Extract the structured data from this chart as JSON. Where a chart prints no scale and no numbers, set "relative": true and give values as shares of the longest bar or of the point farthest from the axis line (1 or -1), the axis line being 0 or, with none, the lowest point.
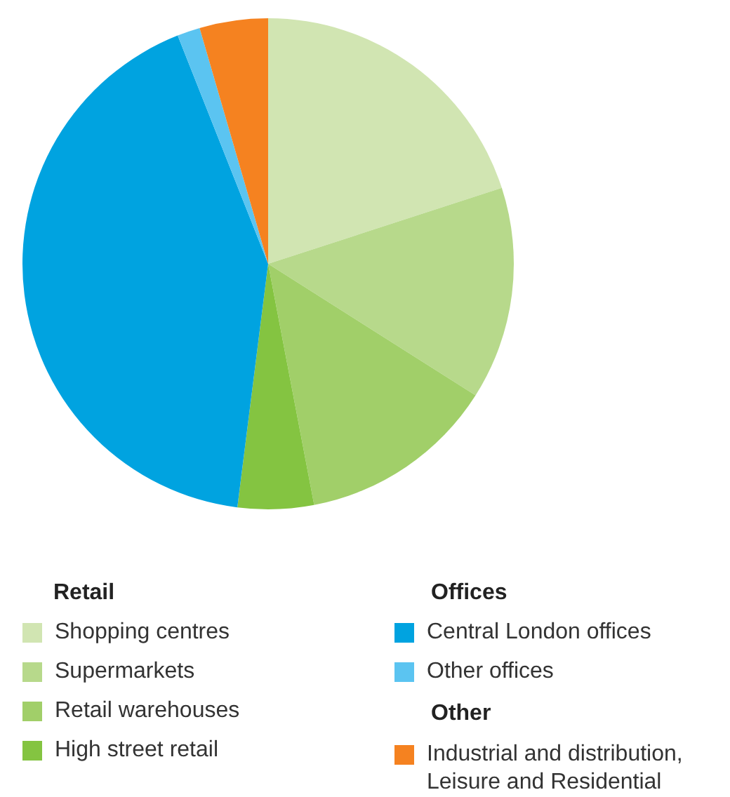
{
  "chart_data": {
    "type": "pie",
    "relative": true,
    "categories": [
      "Shopping centres",
      "Supermarkets",
      "Retail warehouses",
      "High street retail",
      "Central London offices",
      "Other offices",
      "Industrial and distribution, Leisure and Residential"
    ],
    "values": [
      20,
      14,
      13,
      5,
      42,
      1.5,
      4.5
    ],
    "colors": [
      "#d1e5b2",
      "#b7d98b",
      "#a1cf69",
      "#84c441",
      "#00a3e0",
      "#5bc4f1",
      "#f58220"
    ],
    "annotations": [
      "Retail",
      "Offices",
      "Other"
    ],
    "legend": "bottom"
  }
}
